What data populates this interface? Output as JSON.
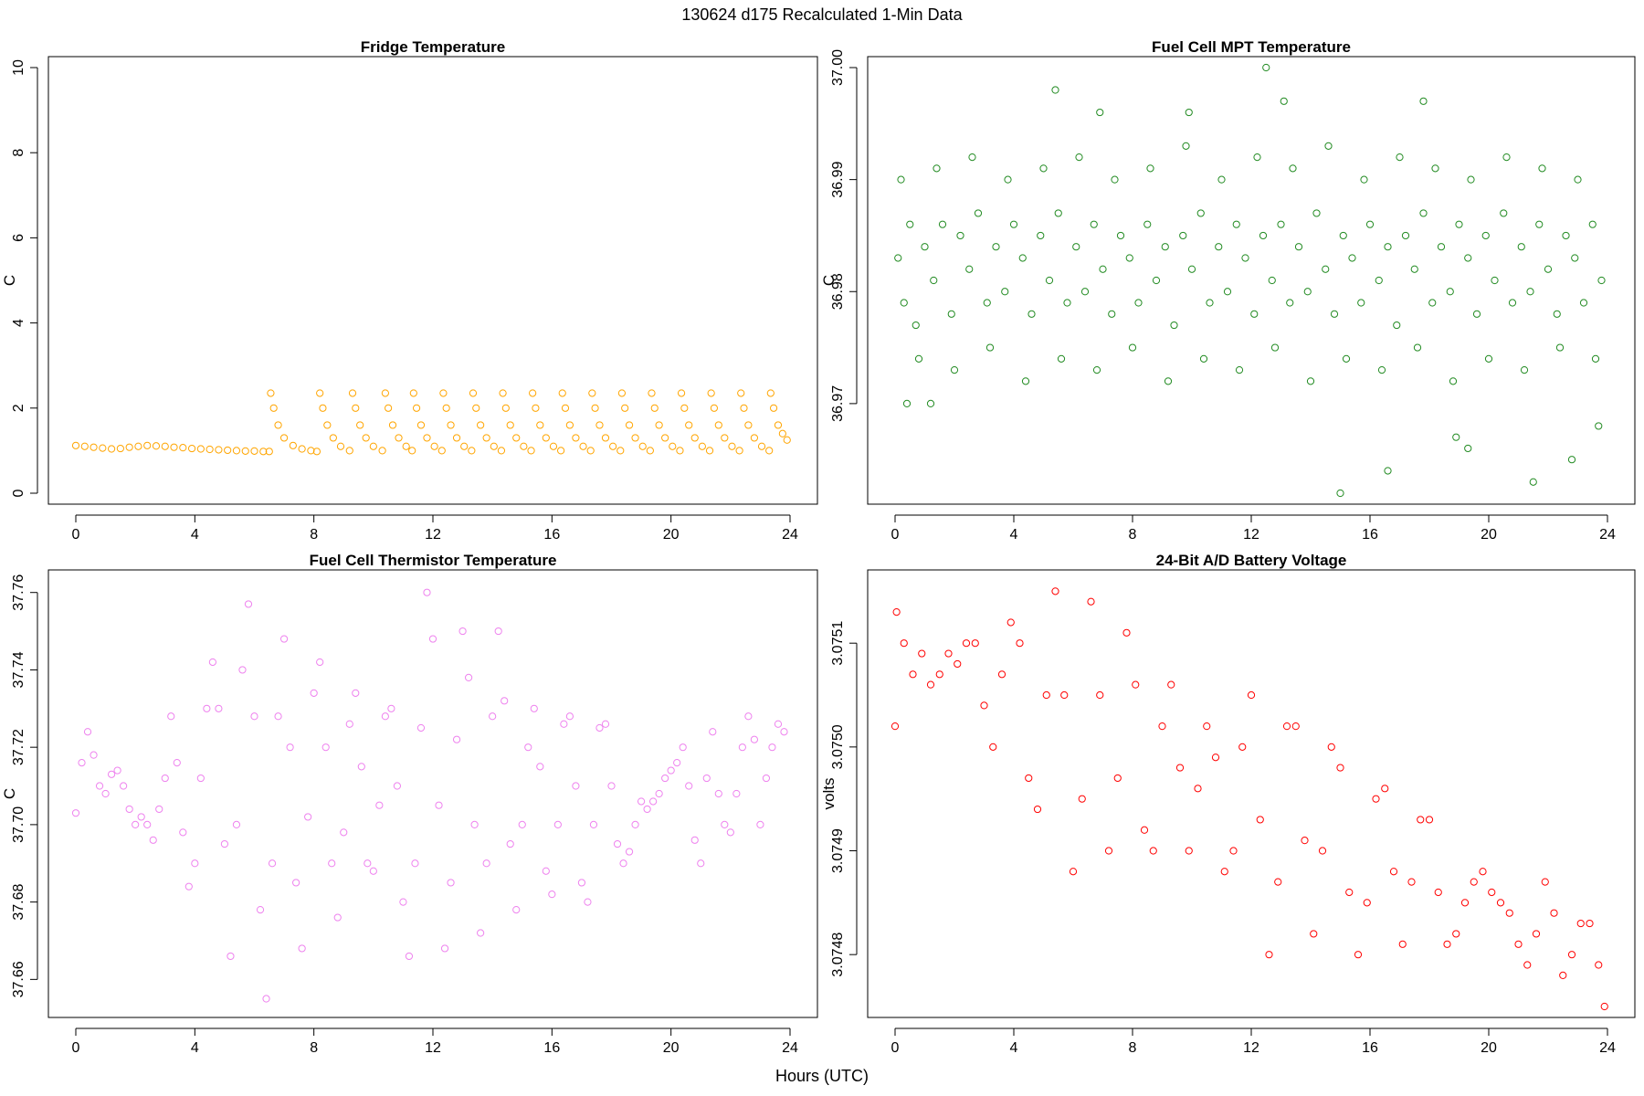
{
  "figure": {
    "title": "130624   d175   Recalculated 1-Min Data",
    "xlabel": "Hours (UTC)"
  },
  "chart_data": [
    {
      "type": "scatter",
      "title": "Fridge Temperature",
      "xlabel": "",
      "ylabel": "C",
      "color": "#FFA500",
      "xlim": [
        0,
        24
      ],
      "ylim": [
        0,
        10
      ],
      "xticks": [
        0,
        4,
        8,
        12,
        16,
        20,
        24
      ],
      "yticks": [
        0,
        2,
        4,
        6,
        8,
        10
      ],
      "series": [
        {
          "name": "Fridge Temperature",
          "x": [
            0.0,
            0.3,
            0.6,
            0.9,
            1.2,
            1.5,
            1.8,
            2.1,
            2.4,
            2.7,
            3.0,
            3.3,
            3.6,
            3.9,
            4.2,
            4.5,
            4.8,
            5.1,
            5.4,
            5.7,
            6.0,
            6.3,
            6.5,
            6.55,
            6.65,
            6.8,
            7.0,
            7.3,
            7.6,
            7.9,
            8.1,
            8.2,
            8.3,
            8.45,
            8.65,
            8.9,
            9.2,
            9.3,
            9.4,
            9.55,
            9.75,
            10.0,
            10.3,
            10.4,
            10.5,
            10.65,
            10.85,
            11.1,
            11.3,
            11.35,
            11.45,
            11.6,
            11.8,
            12.05,
            12.3,
            12.35,
            12.45,
            12.6,
            12.8,
            13.05,
            13.3,
            13.35,
            13.45,
            13.6,
            13.8,
            14.05,
            14.3,
            14.35,
            14.45,
            14.6,
            14.8,
            15.05,
            15.3,
            15.35,
            15.45,
            15.6,
            15.8,
            16.05,
            16.3,
            16.35,
            16.45,
            16.6,
            16.8,
            17.05,
            17.3,
            17.35,
            17.45,
            17.6,
            17.8,
            18.05,
            18.3,
            18.35,
            18.45,
            18.6,
            18.8,
            19.05,
            19.3,
            19.35,
            19.45,
            19.6,
            19.8,
            20.05,
            20.3,
            20.35,
            20.45,
            20.6,
            20.8,
            21.05,
            21.3,
            21.35,
            21.45,
            21.6,
            21.8,
            22.05,
            22.3,
            22.35,
            22.45,
            22.6,
            22.8,
            23.05,
            23.3,
            23.35,
            23.45,
            23.6,
            23.75,
            23.9
          ],
          "y": [
            1.12,
            1.1,
            1.08,
            1.06,
            1.04,
            1.05,
            1.08,
            1.1,
            1.12,
            1.11,
            1.1,
            1.08,
            1.07,
            1.05,
            1.04,
            1.03,
            1.02,
            1.01,
            1.0,
            0.99,
            0.99,
            0.98,
            0.98,
            2.35,
            2.0,
            1.6,
            1.3,
            1.12,
            1.04,
            1.0,
            0.98,
            2.35,
            2.0,
            1.6,
            1.3,
            1.1,
            1.0,
            2.35,
            2.0,
            1.6,
            1.3,
            1.1,
            1.0,
            2.35,
            2.0,
            1.6,
            1.3,
            1.1,
            1.0,
            2.35,
            2.0,
            1.6,
            1.3,
            1.1,
            1.0,
            2.35,
            2.0,
            1.6,
            1.3,
            1.1,
            1.0,
            2.35,
            2.0,
            1.6,
            1.3,
            1.1,
            1.0,
            2.35,
            2.0,
            1.6,
            1.3,
            1.1,
            1.0,
            2.35,
            2.0,
            1.6,
            1.3,
            1.1,
            1.0,
            2.35,
            2.0,
            1.6,
            1.3,
            1.1,
            1.0,
            2.35,
            2.0,
            1.6,
            1.3,
            1.1,
            1.0,
            2.35,
            2.0,
            1.6,
            1.3,
            1.1,
            1.0,
            2.35,
            2.0,
            1.6,
            1.3,
            1.1,
            1.0,
            2.35,
            2.0,
            1.6,
            1.3,
            1.1,
            1.0,
            2.35,
            2.0,
            1.6,
            1.3,
            1.1,
            1.0,
            2.35,
            2.0,
            1.6,
            1.3,
            1.1,
            1.0,
            2.35,
            2.0,
            1.6,
            1.4,
            1.25
          ]
        }
      ]
    },
    {
      "type": "scatter",
      "title": "Fuel Cell MPT Temperature",
      "xlabel": "",
      "ylabel": "C",
      "color": "#228B22",
      "xlim": [
        0,
        24
      ],
      "ylim": [
        36.962,
        37.0
      ],
      "xticks": [
        0,
        4,
        8,
        12,
        16,
        20,
        24
      ],
      "yticks": [
        36.97,
        36.98,
        36.99,
        37.0
      ],
      "series": [
        {
          "name": "Fuel Cell MPT Temperature",
          "x": [
            0.1,
            0.3,
            0.5,
            0.7,
            1.0,
            1.3,
            1.6,
            1.9,
            2.2,
            2.5,
            2.8,
            3.1,
            3.4,
            3.7,
            4.0,
            4.3,
            4.6,
            4.9,
            5.2,
            5.5,
            5.8,
            6.1,
            6.4,
            6.7,
            7.0,
            7.3,
            7.6,
            7.9,
            8.2,
            8.5,
            8.8,
            9.1,
            9.4,
            9.7,
            10.0,
            10.3,
            10.6,
            10.9,
            11.2,
            11.5,
            11.8,
            12.1,
            12.4,
            12.7,
            13.0,
            13.3,
            13.6,
            13.9,
            14.2,
            14.5,
            14.8,
            15.1,
            15.4,
            15.7,
            16.0,
            16.3,
            16.6,
            16.9,
            17.2,
            17.5,
            17.8,
            18.1,
            18.4,
            18.7,
            19.0,
            19.3,
            19.6,
            19.9,
            20.2,
            20.5,
            20.8,
            21.1,
            21.4,
            21.7,
            22.0,
            22.3,
            22.6,
            22.9,
            23.2,
            23.5,
            23.8,
            0.2,
            0.8,
            1.4,
            2.0,
            2.6,
            3.2,
            3.8,
            4.4,
            5.0,
            5.6,
            6.2,
            6.8,
            7.4,
            8.0,
            8.6,
            9.2,
            9.8,
            10.4,
            11.0,
            11.6,
            12.2,
            12.8,
            13.4,
            14.0,
            14.6,
            15.2,
            15.8,
            16.4,
            17.0,
            17.6,
            18.2,
            18.8,
            19.4,
            20.0,
            20.6,
            21.2,
            21.8,
            22.4,
            23.0,
            23.6,
            5.4,
            12.5,
            15.0,
            17.8,
            21.5,
            16.6,
            22.8,
            19.3,
            0.4,
            1.2,
            6.9,
            9.9,
            13.1,
            18.9,
            23.7
          ],
          "y": [
            36.983,
            36.979,
            36.986,
            36.977,
            36.984,
            36.981,
            36.986,
            36.978,
            36.985,
            36.982,
            36.987,
            36.979,
            36.984,
            36.98,
            36.986,
            36.983,
            36.978,
            36.985,
            36.981,
            36.987,
            36.979,
            36.984,
            36.98,
            36.986,
            36.982,
            36.978,
            36.985,
            36.983,
            36.979,
            36.986,
            36.981,
            36.984,
            36.977,
            36.985,
            36.982,
            36.987,
            36.979,
            36.984,
            36.98,
            36.986,
            36.983,
            36.978,
            36.985,
            36.981,
            36.986,
            36.979,
            36.984,
            36.98,
            36.987,
            36.982,
            36.978,
            36.985,
            36.983,
            36.979,
            36.986,
            36.981,
            36.984,
            36.977,
            36.985,
            36.982,
            36.987,
            36.979,
            36.984,
            36.98,
            36.986,
            36.983,
            36.978,
            36.985,
            36.981,
            36.987,
            36.979,
            36.984,
            36.98,
            36.986,
            36.982,
            36.978,
            36.985,
            36.983,
            36.979,
            36.986,
            36.981,
            36.99,
            36.974,
            36.991,
            36.973,
            36.992,
            36.975,
            36.99,
            36.972,
            36.991,
            36.974,
            36.992,
            36.973,
            36.99,
            36.975,
            36.991,
            36.972,
            36.993,
            36.974,
            36.99,
            36.973,
            36.992,
            36.975,
            36.991,
            36.972,
            36.993,
            36.974,
            36.99,
            36.973,
            36.992,
            36.975,
            36.991,
            36.972,
            36.99,
            36.974,
            36.992,
            36.973,
            36.991,
            36.975,
            36.99,
            36.974,
            36.998,
            37.0,
            36.962,
            36.997,
            36.963,
            36.964,
            36.965,
            36.966,
            36.97,
            36.97,
            36.996,
            36.996,
            36.997,
            36.967,
            36.968
          ]
        }
      ]
    },
    {
      "type": "scatter",
      "title": "Fuel Cell Thermistor Temperature",
      "xlabel": "",
      "ylabel": "C",
      "color": "#EE82EE",
      "xlim": [
        0,
        24
      ],
      "ylim": [
        37.653,
        37.763
      ],
      "xticks": [
        0,
        4,
        8,
        12,
        16,
        20,
        24
      ],
      "yticks": [
        37.66,
        37.68,
        37.7,
        37.72,
        37.74,
        37.76
      ],
      "series": [
        {
          "name": "Fuel Cell Thermistor Temperature",
          "x": [
            0.0,
            0.2,
            0.4,
            0.6,
            0.8,
            1.0,
            1.2,
            1.4,
            1.6,
            1.8,
            2.0,
            2.2,
            2.4,
            2.6,
            2.8,
            3.0,
            3.2,
            3.4,
            3.6,
            3.8,
            4.0,
            4.2,
            4.4,
            4.6,
            4.8,
            5.0,
            5.2,
            5.4,
            5.6,
            5.8,
            6.0,
            6.2,
            6.4,
            6.6,
            6.8,
            7.0,
            7.2,
            7.4,
            7.6,
            7.8,
            8.0,
            8.2,
            8.4,
            8.6,
            8.8,
            9.0,
            9.2,
            9.4,
            9.6,
            9.8,
            10.0,
            10.2,
            10.4,
            10.6,
            10.8,
            11.0,
            11.2,
            11.4,
            11.6,
            11.8,
            12.0,
            12.2,
            12.4,
            12.6,
            12.8,
            13.0,
            13.2,
            13.4,
            13.6,
            13.8,
            14.0,
            14.2,
            14.4,
            14.6,
            14.8,
            15.0,
            15.2,
            15.4,
            15.6,
            15.8,
            16.0,
            16.2,
            16.4,
            16.6,
            16.8,
            17.0,
            17.2,
            17.4,
            17.6,
            17.8,
            18.0,
            18.2,
            18.4,
            18.6,
            18.8,
            19.0,
            19.2,
            19.4,
            19.6,
            19.8,
            20.0,
            20.2,
            20.4,
            20.6,
            20.8,
            21.0,
            21.2,
            21.4,
            21.6,
            21.8,
            22.0,
            22.2,
            22.4,
            22.6,
            22.8,
            23.0,
            23.2,
            23.4,
            23.6,
            23.8
          ],
          "y": [
            37.703,
            37.716,
            37.724,
            37.718,
            37.71,
            37.708,
            37.713,
            37.714,
            37.71,
            37.704,
            37.7,
            37.702,
            37.7,
            37.696,
            37.704,
            37.712,
            37.728,
            37.716,
            37.698,
            37.684,
            37.69,
            37.712,
            37.73,
            37.742,
            37.73,
            37.695,
            37.666,
            37.7,
            37.74,
            37.757,
            37.728,
            37.678,
            37.655,
            37.69,
            37.728,
            37.748,
            37.72,
            37.685,
            37.668,
            37.702,
            37.734,
            37.742,
            37.72,
            37.69,
            37.676,
            37.698,
            37.726,
            37.734,
            37.715,
            37.69,
            37.688,
            37.705,
            37.728,
            37.73,
            37.71,
            37.68,
            37.666,
            37.69,
            37.725,
            37.76,
            37.748,
            37.705,
            37.668,
            37.685,
            37.722,
            37.75,
            37.738,
            37.7,
            37.672,
            37.69,
            37.728,
            37.75,
            37.732,
            37.695,
            37.678,
            37.7,
            37.72,
            37.73,
            37.715,
            37.688,
            37.682,
            37.7,
            37.726,
            37.728,
            37.71,
            37.685,
            37.68,
            37.7,
            37.725,
            37.726,
            37.71,
            37.695,
            37.69,
            37.693,
            37.7,
            37.706,
            37.704,
            37.706,
            37.708,
            37.712,
            37.714,
            37.716,
            37.72,
            37.71,
            37.696,
            37.69,
            37.712,
            37.724,
            37.708,
            37.7,
            37.698,
            37.708,
            37.72,
            37.728,
            37.722,
            37.7,
            37.712,
            37.72,
            37.726,
            37.724
          ]
        }
      ]
    },
    {
      "type": "scatter",
      "title": "24-Bit A/D Battery Voltage",
      "xlabel": "",
      "ylabel": "volts",
      "color": "#FF0000",
      "xlim": [
        0,
        24
      ],
      "ylim": [
        3.07475,
        3.07516
      ],
      "xticks": [
        0,
        4,
        8,
        12,
        16,
        20,
        24
      ],
      "yticks": [
        3.0748,
        3.0749,
        3.075,
        3.0751
      ],
      "series": [
        {
          "name": "24-Bit A/D Battery Voltage",
          "x": [
            0.0,
            0.05,
            0.3,
            0.6,
            0.9,
            1.2,
            1.5,
            1.8,
            2.1,
            2.4,
            2.7,
            3.0,
            3.3,
            3.6,
            3.9,
            4.2,
            4.5,
            4.8,
            5.1,
            5.4,
            5.7,
            6.0,
            6.3,
            6.6,
            6.9,
            7.2,
            7.5,
            7.8,
            8.1,
            8.4,
            8.7,
            9.0,
            9.3,
            9.6,
            9.9,
            10.2,
            10.5,
            10.8,
            11.1,
            11.4,
            11.7,
            12.0,
            12.3,
            12.6,
            12.9,
            13.2,
            13.5,
            13.8,
            14.1,
            14.4,
            14.7,
            15.0,
            15.3,
            15.6,
            15.9,
            16.2,
            16.5,
            16.8,
            17.1,
            17.4,
            17.7,
            18.0,
            18.3,
            18.6,
            18.9,
            19.2,
            19.5,
            19.8,
            20.1,
            20.4,
            20.7,
            21.0,
            21.3,
            21.6,
            21.9,
            22.2,
            22.5,
            22.8,
            23.1,
            23.4,
            23.7,
            23.9
          ],
          "y": [
            3.07502,
            3.07513,
            3.0751,
            3.07507,
            3.07509,
            3.07506,
            3.07507,
            3.07509,
            3.07508,
            3.0751,
            3.0751,
            3.07504,
            3.075,
            3.07507,
            3.07512,
            3.0751,
            3.07497,
            3.07494,
            3.07505,
            3.07515,
            3.07505,
            3.07488,
            3.07495,
            3.07514,
            3.07505,
            3.0749,
            3.07497,
            3.07511,
            3.07506,
            3.07492,
            3.0749,
            3.07502,
            3.07506,
            3.07498,
            3.0749,
            3.07496,
            3.07502,
            3.07499,
            3.07488,
            3.0749,
            3.075,
            3.07505,
            3.07493,
            3.0748,
            3.07487,
            3.07502,
            3.07502,
            3.07491,
            3.07482,
            3.0749,
            3.075,
            3.07498,
            3.07486,
            3.0748,
            3.07485,
            3.07495,
            3.07496,
            3.07488,
            3.07481,
            3.07487,
            3.07493,
            3.07493,
            3.07486,
            3.07481,
            3.07482,
            3.07485,
            3.07487,
            3.07488,
            3.07486,
            3.07485,
            3.07484,
            3.07481,
            3.07479,
            3.07482,
            3.07487,
            3.07484,
            3.07478,
            3.0748,
            3.07483,
            3.07483,
            3.07479,
            3.07475
          ]
        }
      ]
    }
  ]
}
